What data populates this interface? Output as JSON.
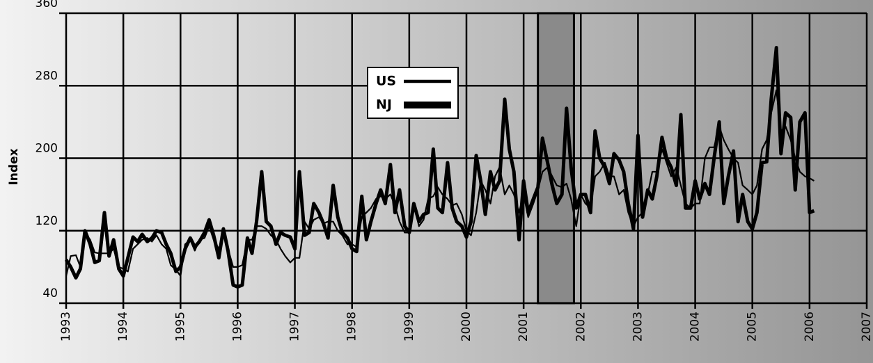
{
  "chart_data": {
    "type": "line",
    "y_label": "Index",
    "xlim": [
      1993,
      2007
    ],
    "xticks": [
      1993,
      1994,
      1995,
      1996,
      1997,
      1998,
      1999,
      2000,
      2001,
      2002,
      2003,
      2004,
      2005,
      2006,
      2007
    ],
    "ylim": [
      40,
      360
    ],
    "yticks": [
      40,
      120,
      200,
      280,
      360
    ],
    "grid": true,
    "shaded_period": [
      2001.25,
      2001.88
    ],
    "x": [
      1993.0,
      1993.08,
      1993.17,
      1993.25,
      1993.33,
      1993.42,
      1993.5,
      1993.58,
      1993.67,
      1993.75,
      1993.83,
      1993.92,
      1994.0,
      1994.08,
      1994.17,
      1994.25,
      1994.33,
      1994.42,
      1994.5,
      1994.58,
      1994.67,
      1994.75,
      1994.83,
      1994.92,
      1995.0,
      1995.08,
      1995.17,
      1995.25,
      1995.33,
      1995.42,
      1995.5,
      1995.58,
      1995.67,
      1995.75,
      1995.83,
      1995.92,
      1996.0,
      1996.08,
      1996.17,
      1996.25,
      1996.33,
      1996.42,
      1996.5,
      1996.58,
      1996.67,
      1996.75,
      1996.83,
      1996.92,
      1997.0,
      1997.08,
      1997.17,
      1997.25,
      1997.33,
      1997.42,
      1997.5,
      1997.58,
      1997.67,
      1997.75,
      1997.83,
      1997.92,
      1998.0,
      1998.08,
      1998.17,
      1998.25,
      1998.33,
      1998.42,
      1998.5,
      1998.58,
      1998.67,
      1998.75,
      1998.83,
      1998.92,
      1999.0,
      1999.08,
      1999.17,
      1999.25,
      1999.33,
      1999.42,
      1999.5,
      1999.58,
      1999.67,
      1999.75,
      1999.83,
      1999.92,
      2000.0,
      2000.08,
      2000.17,
      2000.25,
      2000.33,
      2000.42,
      2000.5,
      2000.58,
      2000.67,
      2000.75,
      2000.83,
      2000.92,
      2001.0,
      2001.08,
      2001.17,
      2001.25,
      2001.33,
      2001.42,
      2001.5,
      2001.58,
      2001.67,
      2001.75,
      2001.83,
      2001.92,
      2002.0,
      2002.08,
      2002.17,
      2002.25,
      2002.33,
      2002.42,
      2002.5,
      2002.58,
      2002.67,
      2002.75,
      2002.83,
      2002.92,
      2003.0,
      2003.08,
      2003.17,
      2003.25,
      2003.33,
      2003.42,
      2003.5,
      2003.58,
      2003.67,
      2003.75,
      2003.83,
      2003.92,
      2004.0,
      2004.08,
      2004.17,
      2004.25,
      2004.33,
      2004.42,
      2004.5,
      2004.58,
      2004.67,
      2004.75,
      2004.83,
      2004.92,
      2005.0,
      2005.08,
      2005.17,
      2005.25,
      2005.33,
      2005.42,
      2005.5,
      2005.58,
      2005.67,
      2005.75,
      2005.83,
      2005.92,
      2006.0,
      2006.08
    ],
    "series": [
      {
        "name": "US",
        "color": "#000000",
        "width": 2.2,
        "values": [
          70,
          92,
          93,
          80,
          118,
          110,
          96,
          95,
          95,
          95,
          100,
          80,
          78,
          75,
          100,
          105,
          110,
          112,
          108,
          115,
          105,
          100,
          82,
          77,
          70,
          105,
          110,
          98,
          110,
          112,
          125,
          110,
          100,
          115,
          100,
          80,
          80,
          82,
          110,
          110,
          125,
          125,
          122,
          115,
          110,
          100,
          92,
          85,
          90,
          90,
          130,
          122,
          132,
          135,
          128,
          130,
          130,
          120,
          115,
          105,
          105,
          102,
          135,
          140,
          145,
          155,
          158,
          155,
          160,
          148,
          130,
          118,
          118,
          150,
          125,
          132,
          155,
          158,
          168,
          160,
          155,
          148,
          150,
          138,
          120,
          115,
          140,
          175,
          165,
          150,
          180,
          190,
          160,
          170,
          160,
          140,
          160,
          135,
          150,
          165,
          185,
          190,
          180,
          170,
          168,
          172,
          155,
          125,
          160,
          150,
          145,
          180,
          185,
          195,
          180,
          180,
          160,
          165,
          140,
          125,
          135,
          140,
          160,
          185,
          185,
          210,
          195,
          180,
          190,
          170,
          150,
          145,
          150,
          150,
          200,
          212,
          212,
          235,
          220,
          210,
          200,
          195,
          170,
          165,
          160,
          170,
          210,
          220,
          250,
          275,
          230,
          235,
          220,
          200,
          185,
          180,
          178,
          175
        ]
      },
      {
        "name": "NJ",
        "color": "#000000",
        "width": 5,
        "values": [
          88,
          80,
          68,
          78,
          120,
          105,
          85,
          87,
          140,
          92,
          110,
          78,
          70,
          90,
          113,
          108,
          116,
          108,
          112,
          120,
          118,
          105,
          95,
          75,
          80,
          100,
          112,
          102,
          108,
          118,
          132,
          115,
          90,
          122,
          98,
          60,
          58,
          60,
          112,
          95,
          130,
          185,
          130,
          125,
          105,
          118,
          115,
          113,
          100,
          185,
          115,
          118,
          150,
          140,
          128,
          112,
          170,
          135,
          118,
          112,
          100,
          97,
          158,
          110,
          130,
          150,
          165,
          150,
          193,
          140,
          165,
          125,
          118,
          150,
          130,
          138,
          140,
          210,
          145,
          140,
          195,
          145,
          130,
          125,
          113,
          130,
          203,
          175,
          138,
          185,
          165,
          175,
          265,
          210,
          185,
          110,
          175,
          140,
          155,
          168,
          222,
          195,
          170,
          150,
          160,
          255,
          190,
          145,
          160,
          160,
          140,
          230,
          200,
          190,
          172,
          205,
          198,
          185,
          150,
          122,
          225,
          135,
          165,
          155,
          180,
          223,
          200,
          190,
          170,
          248,
          145,
          145,
          175,
          155,
          172,
          160,
          200,
          240,
          150,
          180,
          208,
          130,
          160,
          130,
          122,
          140,
          195,
          196,
          265,
          322,
          205,
          250,
          245,
          165,
          240,
          250,
          140,
          142
        ]
      }
    ]
  }
}
